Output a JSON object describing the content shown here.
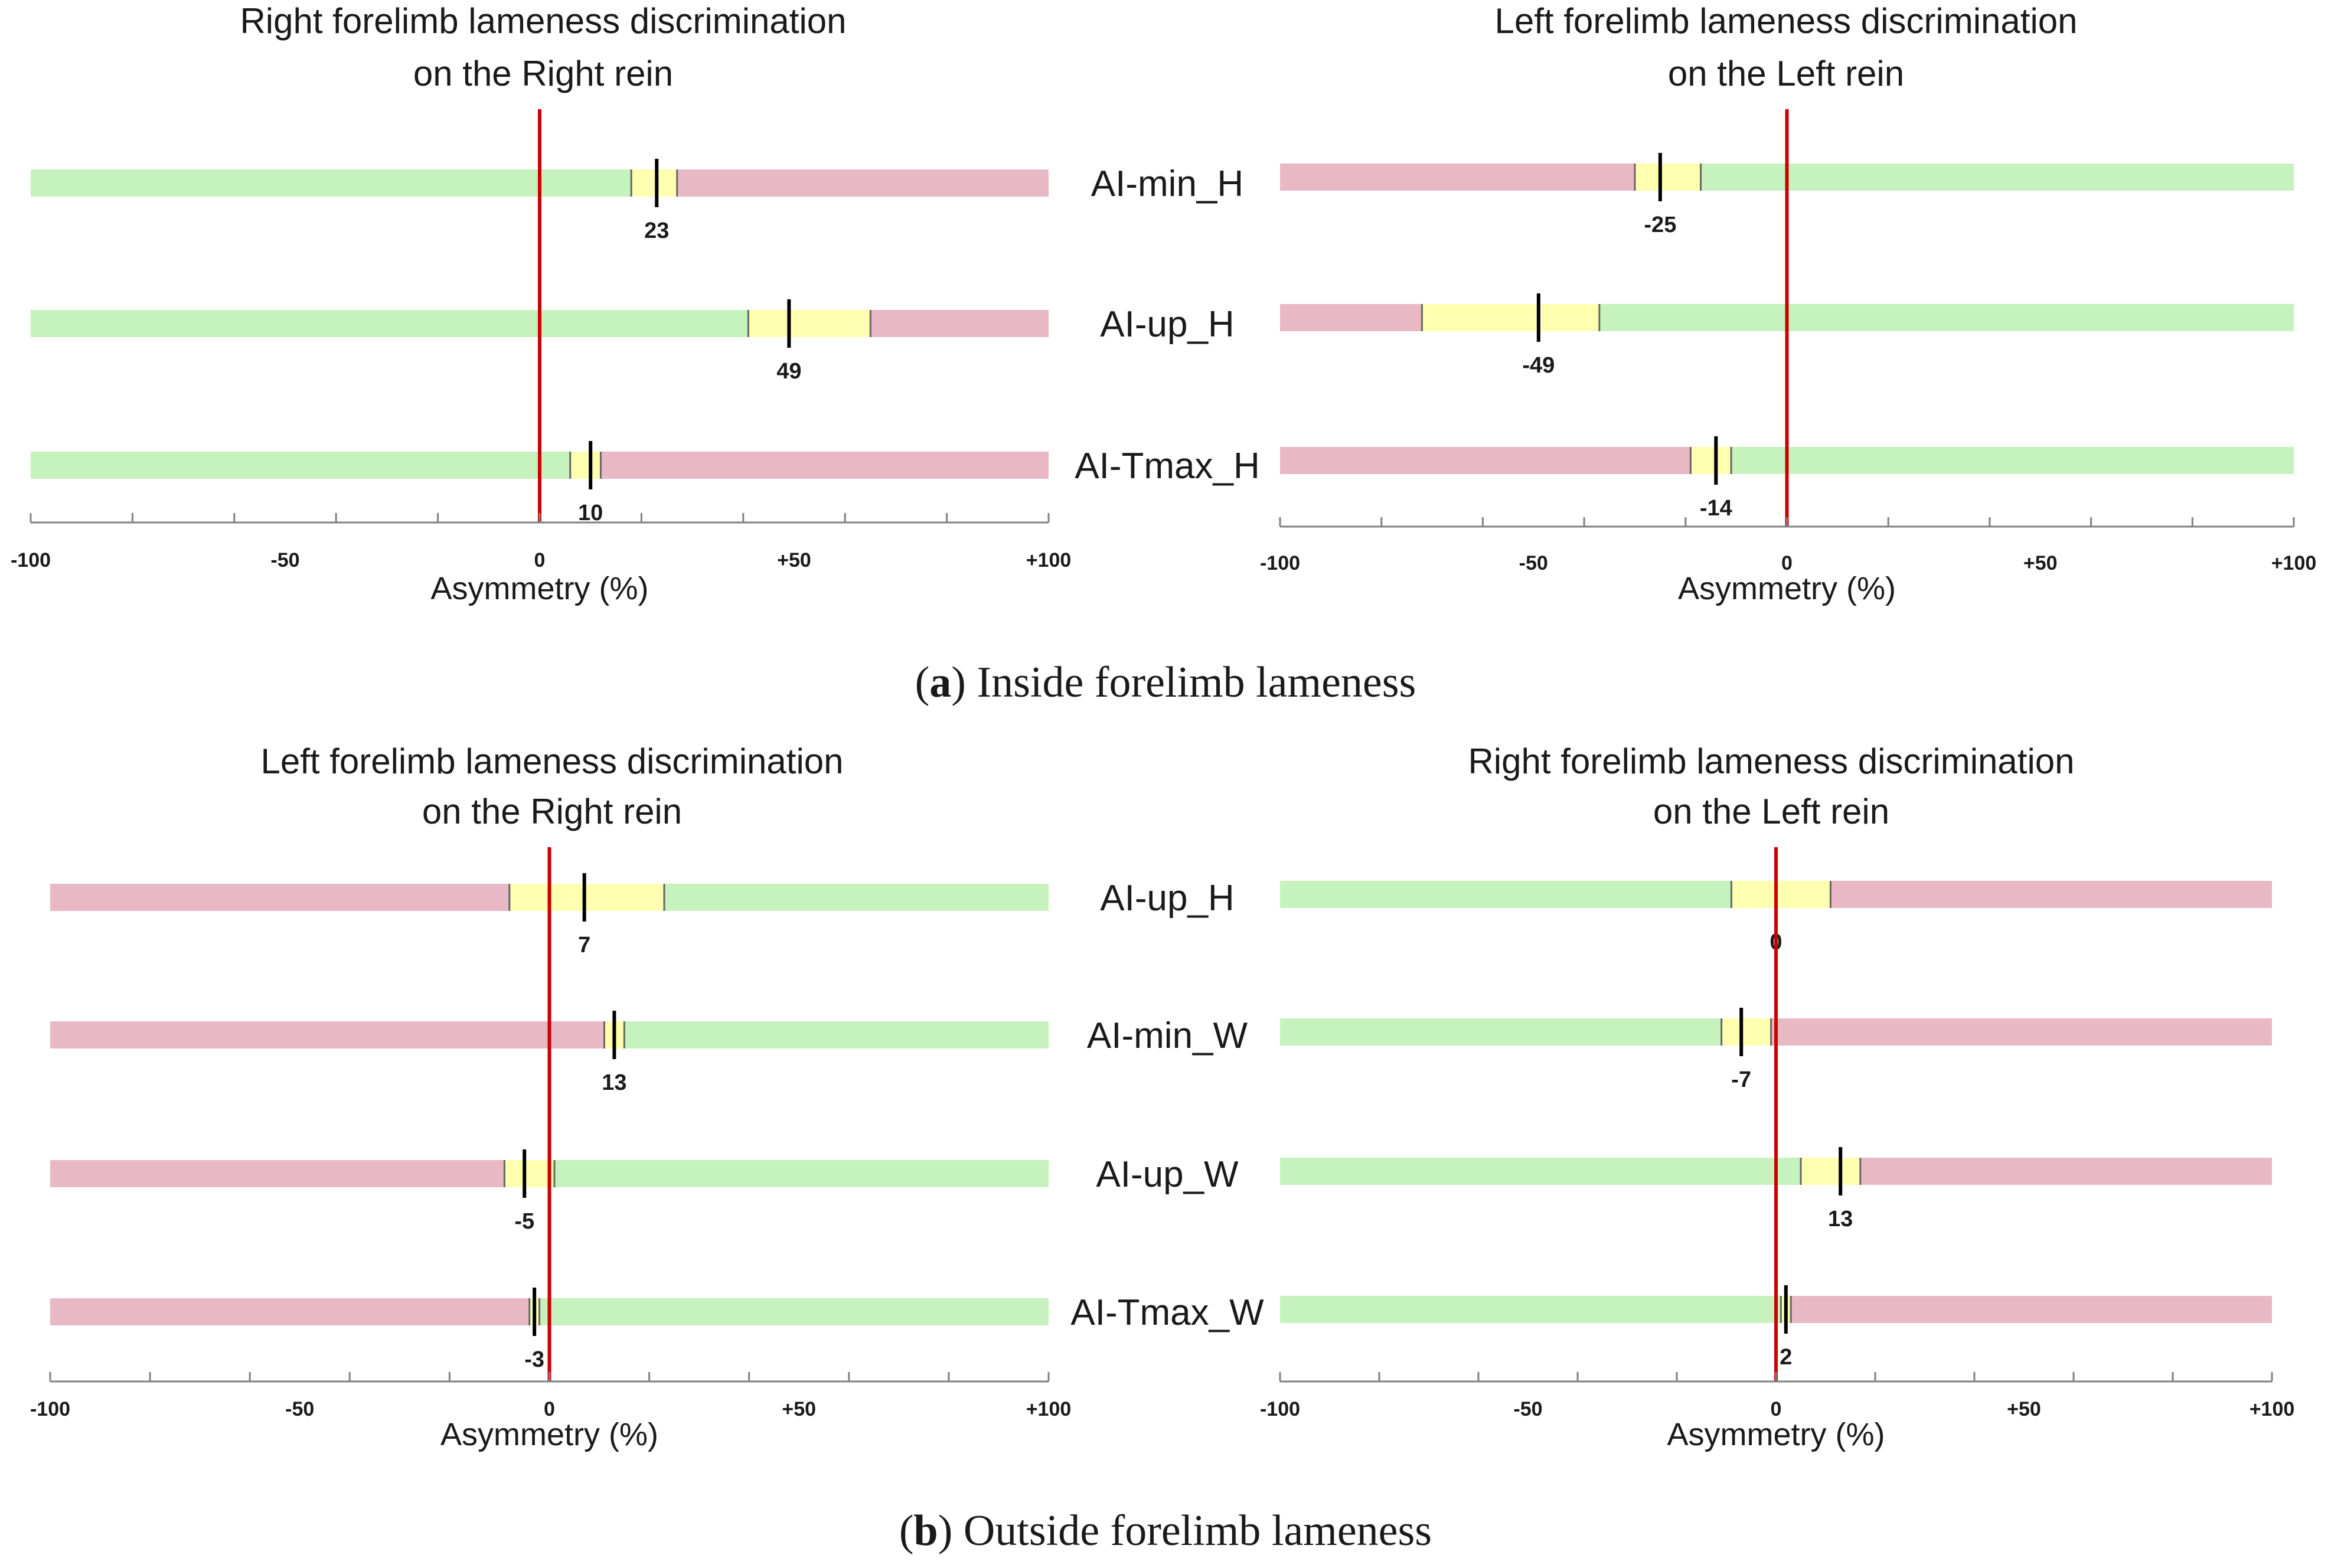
{
  "colors": {
    "green": "#c6f2bd",
    "red": "#e8b9c5",
    "yellow": "#ffffb0",
    "zero_line": "#cc0000",
    "axis": "#808080",
    "marker": "#000000"
  },
  "captions": [
    {
      "letter": "a",
      "open": "(",
      "close": ")",
      "text": " Inside forelimb lameness"
    },
    {
      "letter": "b",
      "open": "(",
      "close": ")",
      "text": " Outside forelimb lameness"
    }
  ],
  "chart_data": [
    {
      "type": "bar",
      "title_lines": [
        "Right forelimb lameness discrimination",
        "on the Right rein"
      ],
      "xlabel": "Asymmetry (%)",
      "xlim": [
        -100,
        100
      ],
      "tick_labels": [
        "-100",
        "-50",
        "0",
        "+50",
        "+100"
      ],
      "tick_values": [
        -100,
        -50,
        0,
        50,
        100
      ],
      "bars": [
        {
          "label": "AI-min_H",
          "low_color": "green",
          "high_color": "red",
          "band": [
            18,
            27
          ],
          "value": 23,
          "value_label": "23"
        },
        {
          "label": "AI-up_H",
          "low_color": "green",
          "high_color": "red",
          "band": [
            41,
            65
          ],
          "value": 49,
          "value_label": "49"
        },
        {
          "label": "AI-Tmax_H",
          "low_color": "green",
          "high_color": "red",
          "band": [
            6,
            12
          ],
          "value": 10,
          "value_label": "10"
        }
      ]
    },
    {
      "type": "bar",
      "title_lines": [
        "Left forelimb lameness discrimination",
        "on the Left rein"
      ],
      "xlabel": "Asymmetry (%)",
      "xlim": [
        -100,
        100
      ],
      "tick_labels": [
        "-100",
        "-50",
        "0",
        "+50",
        "+100"
      ],
      "tick_values": [
        -100,
        -50,
        0,
        50,
        100
      ],
      "bars": [
        {
          "label": "AI-min_H",
          "low_color": "red",
          "high_color": "green",
          "band": [
            -30,
            -17
          ],
          "value": -25,
          "value_label": "-25"
        },
        {
          "label": "AI-up_H",
          "low_color": "red",
          "high_color": "green",
          "band": [
            -72,
            -37
          ],
          "value": -49,
          "value_label": "-49"
        },
        {
          "label": "AI-Tmax_H",
          "low_color": "red",
          "high_color": "green",
          "band": [
            -19,
            -11
          ],
          "value": -14,
          "value_label": "-14"
        }
      ]
    },
    {
      "type": "bar",
      "title_lines": [
        "Left forelimb lameness discrimination",
        "on the Right rein"
      ],
      "xlabel": "Asymmetry (%)",
      "xlim": [
        -100,
        100
      ],
      "tick_labels": [
        "-100",
        "-50",
        "0",
        "+50",
        "+100"
      ],
      "tick_values": [
        -100,
        -50,
        0,
        50,
        100
      ],
      "bars": [
        {
          "label": "AI-up_H",
          "low_color": "red",
          "high_color": "green",
          "band": [
            -8,
            23
          ],
          "value": 7,
          "value_label": "7"
        },
        {
          "label": "AI-min_W",
          "low_color": "red",
          "high_color": "green",
          "band": [
            11,
            15
          ],
          "value": 13,
          "value_label": "13"
        },
        {
          "label": "AI-up_W",
          "low_color": "red",
          "high_color": "green",
          "band": [
            -9,
            1
          ],
          "value": -5,
          "value_label": "-5"
        },
        {
          "label": "AI-Tmax_W",
          "low_color": "red",
          "high_color": "green",
          "band": [
            -4,
            -2
          ],
          "value": -3,
          "value_label": "-3"
        }
      ]
    },
    {
      "type": "bar",
      "title_lines": [
        "Right forelimb lameness discrimination",
        "on the Left rein"
      ],
      "xlabel": "Asymmetry (%)",
      "xlim": [
        -100,
        100
      ],
      "tick_labels": [
        "-100",
        "-50",
        "0",
        "+50",
        "+100"
      ],
      "tick_values": [
        -100,
        -50,
        0,
        50,
        100
      ],
      "bars": [
        {
          "label": "AI-up_H",
          "low_color": "green",
          "high_color": "red",
          "band": [
            -9,
            11
          ],
          "value": 0,
          "value_label": "0"
        },
        {
          "label": "AI-min_W",
          "low_color": "green",
          "high_color": "red",
          "band": [
            -11,
            -1
          ],
          "value": -7,
          "value_label": "-7"
        },
        {
          "label": "AI-up_W",
          "low_color": "green",
          "high_color": "red",
          "band": [
            5,
            17
          ],
          "value": 13,
          "value_label": "13"
        },
        {
          "label": "AI-Tmax_W",
          "low_color": "green",
          "high_color": "red",
          "band": [
            1,
            3
          ],
          "value": 2,
          "value_label": "2"
        }
      ]
    }
  ]
}
